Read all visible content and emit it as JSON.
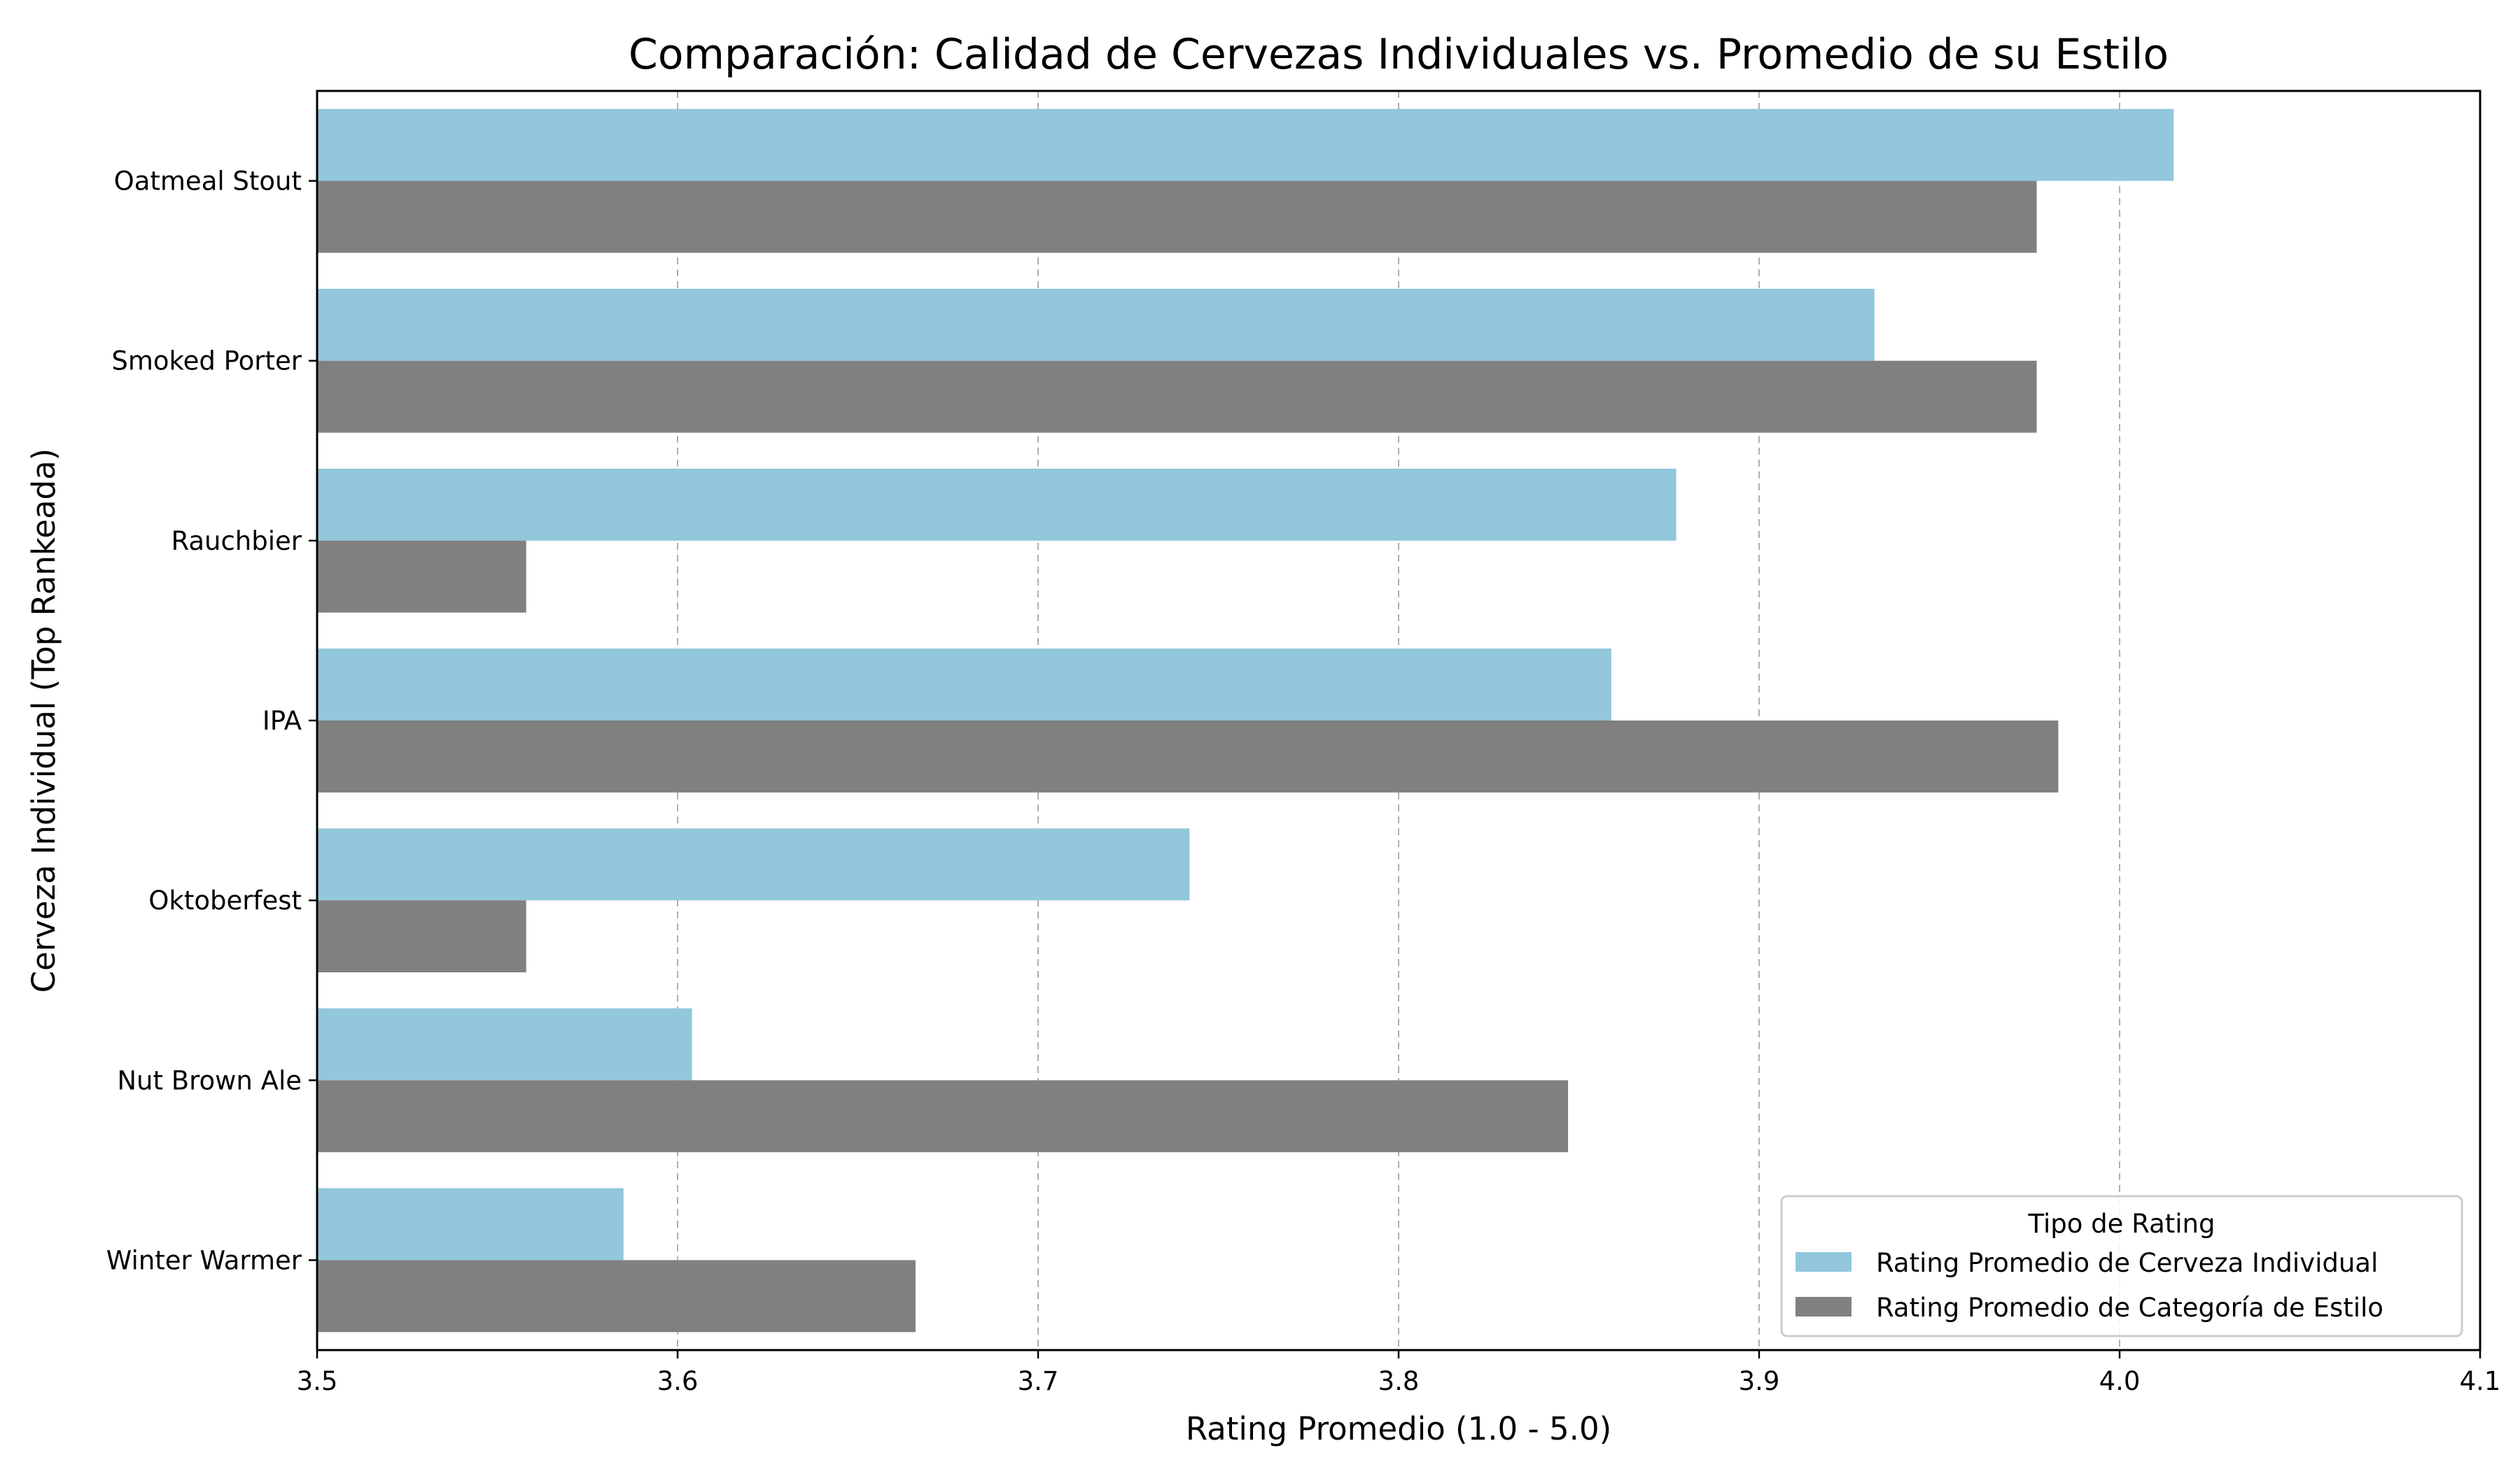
{
  "chart_data": {
    "type": "bar",
    "orientation": "horizontal",
    "title": "Comparación: Calidad de Cervezas Individuales vs. Promedio de su Estilo",
    "xlabel": "Rating Promedio (1.0 - 5.0)",
    "ylabel": "Cerveza Individual (Top Rankeada)",
    "xlim": [
      3.5,
      4.1
    ],
    "xticks": [
      "3.5",
      "3.6",
      "3.7",
      "3.8",
      "3.9",
      "4.0",
      "4.1"
    ],
    "grid": "vertical dashed",
    "categories": [
      "Oatmeal Stout",
      "Smoked Porter",
      "Rauchbier",
      "IPA",
      "Oktoberfest",
      "Nut Brown Ale",
      "Winter Warmer"
    ],
    "series": [
      {
        "name": "Rating Promedio de Cerveza Individual",
        "color": "#92c7dc",
        "values": [
          4.015,
          3.932,
          3.877,
          3.859,
          3.742,
          3.604,
          3.585
        ]
      },
      {
        "name": "Rating Promedio de Categoría de Estilo",
        "color": "#808080",
        "values": [
          3.977,
          3.977,
          3.558,
          3.983,
          3.558,
          3.847,
          3.666
        ]
      }
    ],
    "legend": {
      "title": "Tipo de Rating",
      "position": "lower-right"
    }
  }
}
